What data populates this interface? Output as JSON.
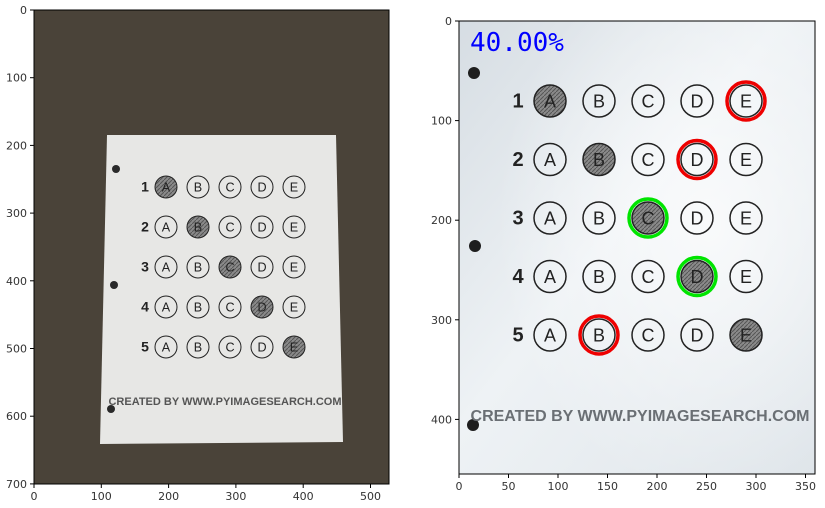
{
  "plots": [
    {
      "name": "original-photo",
      "x_ticks": [
        "0",
        "100",
        "200",
        "300",
        "400",
        "500"
      ],
      "y_ticks": [
        "0",
        "100",
        "200",
        "300",
        "400",
        "500",
        "600",
        "700"
      ]
    },
    {
      "name": "graded-sheet",
      "x_ticks": [
        "0",
        "50",
        "100",
        "150",
        "200",
        "250",
        "300",
        "350"
      ],
      "y_ticks": [
        "0",
        "100",
        "200",
        "300",
        "400"
      ]
    }
  ],
  "sheet": {
    "footer": "CREATED BY WWW.PYIMAGESEARCH.COM",
    "choices": [
      "A",
      "B",
      "C",
      "D",
      "E"
    ],
    "questions": [
      {
        "number": "1",
        "filled": "A",
        "correct": "E"
      },
      {
        "number": "2",
        "filled": "B",
        "correct": "D"
      },
      {
        "number": "3",
        "filled": "C",
        "correct": "C"
      },
      {
        "number": "4",
        "filled": "D",
        "correct": "D"
      },
      {
        "number": "5",
        "filled": "E",
        "correct": "B"
      }
    ]
  },
  "score": "40.00%",
  "colors": {
    "correct": "#00e400",
    "wrong": "#ee0000",
    "score_text": "#0000ff",
    "background_surface": "#4a4339"
  }
}
